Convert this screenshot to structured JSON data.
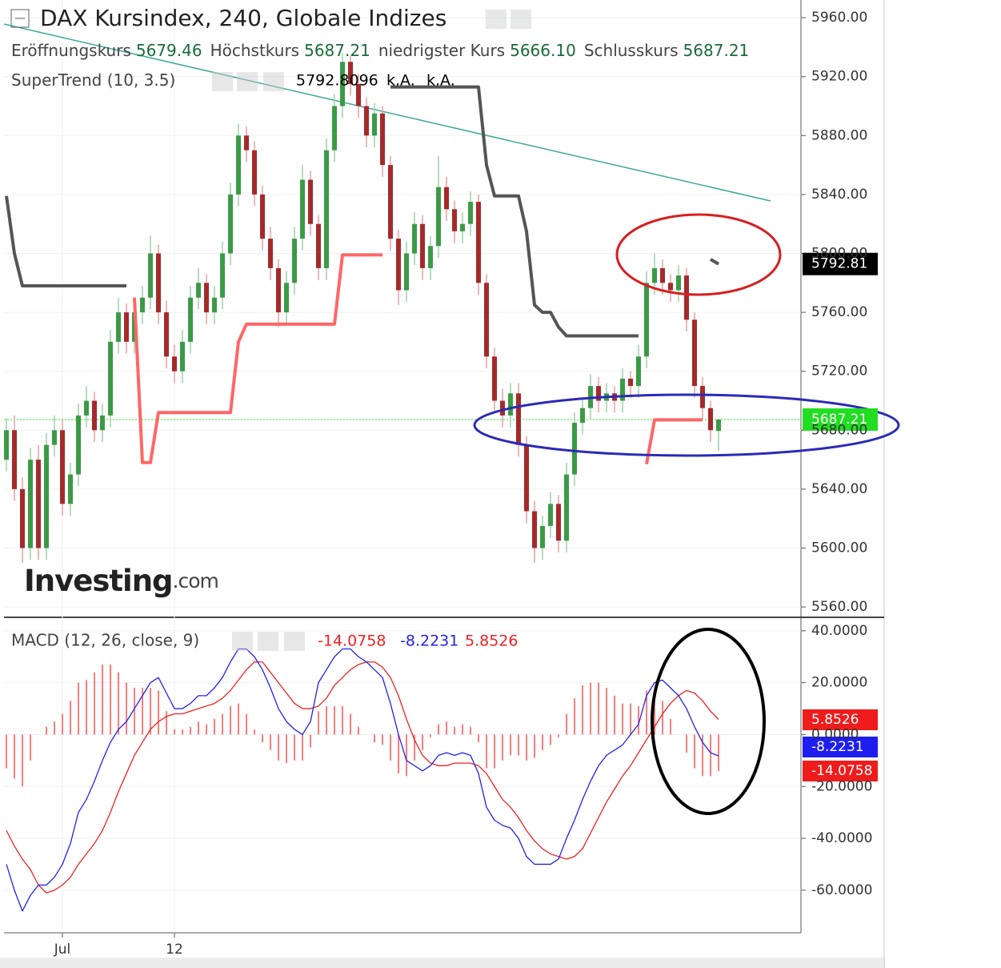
{
  "chart_data": [
    {
      "type": "candlestick",
      "title": "DAX Kursindex, 240, Globale Indizes",
      "ohlc_legend": [
        {
          "name": "Eröffnungskurs",
          "value": 5679.46
        },
        {
          "name": "Höchstkurs",
          "value": 5687.21
        },
        {
          "name": "niedrigster Kurs",
          "value": 5666.1,
          "label": "5666.10"
        },
        {
          "name": "Schlusskurs",
          "value": 5687.21
        }
      ],
      "watermark": "Investing",
      "watermark_suffix": ".com",
      "categories": [
        null,
        null,
        null,
        null,
        null,
        null,
        null,
        "Jul",
        null,
        null,
        null,
        null,
        null,
        null,
        null,
        null,
        null,
        null,
        null,
        null,
        null,
        "12",
        null,
        null,
        null,
        null,
        null,
        null,
        null,
        null,
        null,
        null,
        null,
        null,
        null,
        null,
        null,
        null,
        null,
        null,
        null,
        null,
        null,
        null,
        null,
        null,
        null,
        null,
        null,
        null,
        null,
        null,
        null,
        null,
        null,
        null,
        null,
        null,
        null,
        null,
        null,
        null,
        null,
        null,
        null,
        null,
        null,
        null,
        null,
        null,
        null,
        null,
        null,
        null,
        null,
        null,
        null,
        null,
        null,
        null,
        null,
        null,
        null,
        null,
        null,
        null,
        null,
        null,
        null,
        null
      ],
      "open": [
        5660,
        5680,
        5640,
        5600,
        5660,
        5600,
        5670,
        5680,
        5630,
        5650,
        5690,
        5700,
        5680,
        5690,
        5740,
        5760,
        5740,
        5760,
        5770,
        5800,
        5760,
        5730,
        5720,
        5740,
        5770,
        5780,
        5760,
        5770,
        5800,
        5840,
        5880,
        5870,
        5840,
        5810,
        5790,
        5760,
        5780,
        5810,
        5850,
        5820,
        5790,
        5870,
        5900,
        5930,
        5915,
        5900,
        5880,
        5895,
        5860,
        5810,
        5775,
        5800,
        5820,
        5790,
        5805,
        5845,
        5830,
        5815,
        5820,
        5835,
        5780,
        5730,
        5700,
        5690,
        5705,
        5670,
        5625,
        5600,
        5615,
        5630,
        5605,
        5650,
        5685,
        5695,
        5710,
        5700,
        5705,
        5700,
        5715,
        5710,
        5730,
        5780,
        5790,
        5780,
        5775,
        5785,
        5755,
        5710,
        5695,
        5679.46
      ],
      "high": [
        5688,
        5690,
        5648,
        5668,
        5670,
        5678,
        5690,
        5688,
        5658,
        5698,
        5710,
        5706,
        5698,
        5748,
        5770,
        5766,
        5768,
        5778,
        5812,
        5806,
        5768,
        5738,
        5748,
        5778,
        5790,
        5786,
        5778,
        5808,
        5848,
        5888,
        5886,
        5876,
        5846,
        5818,
        5796,
        5788,
        5818,
        5860,
        5856,
        5826,
        5878,
        5908,
        5936,
        5934,
        5922,
        5906,
        5902,
        5900,
        5866,
        5816,
        5808,
        5828,
        5826,
        5812,
        5866,
        5852,
        5836,
        5828,
        5842,
        5840,
        5786,
        5736,
        5708,
        5712,
        5712,
        5676,
        5632,
        5622,
        5638,
        5636,
        5658,
        5692,
        5702,
        5718,
        5716,
        5712,
        5710,
        5722,
        5720,
        5738,
        5788,
        5800,
        5796,
        5786,
        5792,
        5790,
        5760,
        5716,
        5700,
        5687.21
      ],
      "low": [
        5652,
        5632,
        5590,
        5592,
        5592,
        5592,
        5662,
        5622,
        5622,
        5642,
        5682,
        5672,
        5672,
        5682,
        5732,
        5732,
        5732,
        5752,
        5762,
        5752,
        5722,
        5712,
        5712,
        5732,
        5762,
        5752,
        5752,
        5762,
        5792,
        5832,
        5862,
        5832,
        5802,
        5782,
        5750,
        5752,
        5772,
        5802,
        5812,
        5782,
        5782,
        5862,
        5892,
        5907,
        5892,
        5872,
        5872,
        5852,
        5802,
        5765,
        5767,
        5792,
        5782,
        5782,
        5797,
        5822,
        5807,
        5807,
        5812,
        5772,
        5722,
        5692,
        5682,
        5682,
        5662,
        5617,
        5590,
        5592,
        5607,
        5597,
        5597,
        5642,
        5677,
        5687,
        5692,
        5692,
        5692,
        5692,
        5702,
        5702,
        5722,
        5772,
        5772,
        5767,
        5767,
        5747,
        5702,
        5687,
        5672,
        5666.1
      ],
      "close": [
        5680,
        5640,
        5600,
        5660,
        5600,
        5670,
        5680,
        5630,
        5650,
        5690,
        5700,
        5680,
        5690,
        5740,
        5760,
        5740,
        5760,
        5770,
        5800,
        5760,
        5730,
        5720,
        5740,
        5770,
        5780,
        5760,
        5770,
        5800,
        5840,
        5880,
        5870,
        5840,
        5810,
        5790,
        5760,
        5780,
        5810,
        5850,
        5820,
        5790,
        5870,
        5900,
        5930,
        5915,
        5900,
        5880,
        5895,
        5860,
        5810,
        5775,
        5800,
        5820,
        5790,
        5805,
        5845,
        5830,
        5815,
        5820,
        5835,
        5780,
        5730,
        5700,
        5690,
        5705,
        5670,
        5625,
        5600,
        5615,
        5630,
        5605,
        5650,
        5685,
        5695,
        5710,
        5700,
        5705,
        5700,
        5715,
        5710,
        5730,
        5780,
        5790,
        5780,
        5775,
        5785,
        5755,
        5710,
        5695,
        5680,
        5687.21
      ],
      "up_color": "#3b9a46",
      "down_color": "#a52a2a",
      "indicator": {
        "name": "SuperTrend (10, 3.5)",
        "na_labels": [
          "k.A.",
          "k.A."
        ],
        "down_color": "#555555",
        "up_color": "#ff6666",
        "down_values": [
          5839,
          5800,
          5778,
          5778,
          5778,
          5778,
          5778,
          5778,
          5778,
          5778,
          5778,
          5778,
          5778,
          5778,
          5778,
          5778,
          null,
          null,
          null,
          null,
          null,
          null,
          null,
          null,
          null,
          null,
          null,
          null,
          null,
          null,
          null,
          null,
          null,
          null,
          null,
          null,
          null,
          null,
          null,
          null,
          null,
          null,
          null,
          null,
          null,
          null,
          null,
          null,
          5913,
          5913,
          5913,
          5913,
          5913,
          5913,
          5913,
          5913,
          5913,
          5913,
          5913,
          5913,
          5860,
          5839,
          5839,
          5839,
          5839,
          5815,
          5765,
          5760,
          5760,
          5750,
          5744,
          5744,
          5744,
          5744,
          5744,
          5744,
          5744,
          5744,
          5744,
          5744,
          null,
          null,
          null,
          null,
          null,
          null,
          null,
          null,
          5796,
          5792.8096
        ],
        "up_values": [
          null,
          null,
          null,
          null,
          null,
          null,
          null,
          null,
          null,
          null,
          null,
          null,
          null,
          null,
          null,
          null,
          5770,
          5658,
          5658,
          5692,
          5692,
          5692,
          5692,
          5692,
          5692,
          5692,
          5692,
          5692,
          5692,
          5740,
          5752,
          5752,
          5752,
          5752,
          5752,
          5752,
          5752,
          5752,
          5752,
          5752,
          5752,
          5752,
          5799,
          5799,
          5799,
          5799,
          5799,
          5799,
          null,
          null,
          null,
          null,
          null,
          null,
          null,
          null,
          null,
          null,
          null,
          null,
          null,
          null,
          null,
          null,
          null,
          null,
          null,
          null,
          null,
          null,
          null,
          null,
          null,
          null,
          null,
          null,
          null,
          null,
          null,
          null,
          5657,
          5687,
          5687,
          5687,
          5687,
          5687,
          5687,
          5687,
          null,
          null
        ]
      },
      "price_tags": [
        {
          "value": 5792.8096,
          "label": "5792.81",
          "color": "#000000"
        },
        {
          "value": 5687.21,
          "color": "#22dd22"
        }
      ],
      "ylim": [
        5553,
        5972
      ],
      "yticks": [
        {
          "value": 5960,
          "label": "5960.00"
        },
        {
          "value": 5920,
          "label": "5920.00"
        },
        {
          "value": 5880,
          "label": "5880.00"
        },
        {
          "value": 5840,
          "label": "5840.00"
        },
        {
          "value": 5800,
          "label": "5800.00"
        },
        {
          "value": 5760,
          "label": "5760.00"
        },
        {
          "value": 5720,
          "label": "5720.00"
        },
        {
          "value": 5680,
          "label": "5680.00"
        },
        {
          "value": 5640,
          "label": "5640.00"
        },
        {
          "value": 5600,
          "label": "5600.00"
        },
        {
          "value": 5560,
          "label": "5560.00"
        }
      ],
      "grid": true
    },
    {
      "type": "macd",
      "title": "MACD (12, 26, close, 9)",
      "histogram": {
        "color": "#ff5050",
        "values": [
          -13,
          -17,
          -20,
          -10,
          0,
          3,
          5,
          8,
          13,
          20,
          21,
          24,
          27,
          27,
          24,
          20,
          18,
          18,
          18,
          17,
          9,
          2,
          2,
          3,
          5,
          4,
          6,
          8,
          11,
          12,
          8,
          2,
          -3,
          -6,
          -10,
          -11,
          -10,
          -10,
          -5,
          9,
          11,
          11,
          11,
          8,
          3,
          0,
          -3,
          -4,
          -10,
          -15,
          -16,
          -10,
          -6,
          -1,
          4,
          5,
          3,
          4,
          3,
          -3,
          -13,
          -13,
          -10,
          -8,
          -8,
          -10,
          -9,
          -6,
          -4,
          -1,
          8,
          14,
          19,
          20,
          20,
          18,
          15,
          12,
          12,
          11,
          17,
          17,
          13,
          6,
          0,
          -7,
          -13,
          -16,
          -16,
          -14.0758
        ]
      },
      "macd": {
        "color": "#2222ee",
        "values": [
          -50,
          -60,
          -68,
          -62,
          -58,
          -58,
          -55,
          -50,
          -42,
          -30,
          -25,
          -18,
          -10,
          -3,
          2,
          5,
          10,
          15,
          20,
          22,
          16,
          10,
          10,
          12,
          15,
          15,
          18,
          22,
          28,
          33,
          33,
          30,
          25,
          18,
          10,
          5,
          2,
          0,
          5,
          20,
          25,
          30,
          33,
          33,
          30,
          28,
          25,
          22,
          12,
          0,
          -10,
          -12,
          -14,
          -12,
          -8,
          -7,
          -8,
          -7,
          -8,
          -15,
          -28,
          -33,
          -35,
          -36,
          -40,
          -47,
          -50,
          -50,
          -50,
          -48,
          -40,
          -33,
          -25,
          -18,
          -12,
          -8,
          -6,
          -4,
          0,
          4,
          15,
          20,
          21,
          18,
          15,
          10,
          3,
          -3,
          -7,
          -8.2231
        ]
      },
      "signal": {
        "color": "#ee2222",
        "values": [
          -37,
          -43,
          -48,
          -52,
          -58,
          -61,
          -60,
          -58,
          -55,
          -50,
          -46,
          -42,
          -37,
          -30,
          -22,
          -15,
          -8,
          -3,
          2,
          5,
          7,
          8,
          8,
          9,
          10,
          11,
          12,
          14,
          17,
          21,
          25,
          28,
          28,
          24,
          20,
          16,
          12,
          10,
          10,
          11,
          14,
          19,
          22,
          25,
          27,
          28,
          28,
          26,
          22,
          15,
          6,
          -2,
          -8,
          -11,
          -12,
          -12,
          -11,
          -11,
          -11,
          -12,
          -15,
          -20,
          -25,
          -28,
          -32,
          -37,
          -41,
          -44,
          -46,
          -47,
          -48,
          -47,
          -44,
          -38,
          -32,
          -26,
          -21,
          -16,
          -12,
          -7,
          -2,
          3,
          8,
          12,
          15,
          17,
          16,
          13,
          9,
          5.8526
        ]
      },
      "ylim": [
        -76.4,
        45.2
      ],
      "yticks": [
        {
          "value": 40,
          "label": "40.0000"
        },
        {
          "value": 20,
          "label": "20.0000"
        },
        {
          "value": 0,
          "label": "0.0000"
        },
        {
          "value": -20,
          "label": "-20.0000"
        },
        {
          "value": -40,
          "label": "-40.0000"
        },
        {
          "value": -60,
          "label": "-60.0000"
        }
      ],
      "grid": true
    }
  ]
}
